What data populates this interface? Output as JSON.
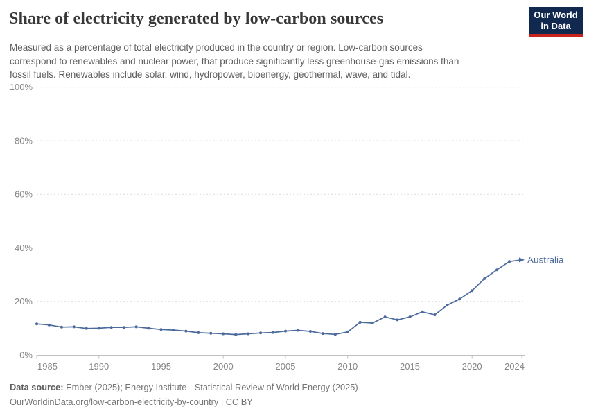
{
  "header": {
    "title": "Share of electricity generated by low-carbon sources",
    "subtitle_lines": [
      "Measured as a percentage of total electricity produced in the country or region. Low-carbon sources",
      "correspond to renewables and nuclear power, that produce significantly less greenhouse-gas emissions than",
      "fossil fuels. Renewables include solar, wind, hydropower, bioenergy, geothermal, wave, and tidal."
    ],
    "logo": {
      "line1": "Our World",
      "line2": "in Data",
      "bg_color": "#12294f",
      "bar_color": "#c7241d"
    }
  },
  "chart_data": {
    "type": "line",
    "title": "Share of electricity generated by low-carbon sources",
    "x": [
      1985,
      1986,
      1987,
      1988,
      1989,
      1990,
      1991,
      1992,
      1993,
      1994,
      1995,
      1996,
      1997,
      1998,
      1999,
      2000,
      2001,
      2002,
      2003,
      2004,
      2005,
      2006,
      2007,
      2008,
      2009,
      2010,
      2011,
      2012,
      2013,
      2014,
      2015,
      2016,
      2017,
      2018,
      2019,
      2020,
      2021,
      2022,
      2023,
      2024
    ],
    "series": [
      {
        "name": "Australia",
        "color": "#4c6a9c",
        "values": [
          11.6,
          11.2,
          10.4,
          10.5,
          9.9,
          10.0,
          10.3,
          10.3,
          10.5,
          10.0,
          9.5,
          9.3,
          8.9,
          8.3,
          8.1,
          7.9,
          7.6,
          7.9,
          8.2,
          8.4,
          8.9,
          9.2,
          8.8,
          8.0,
          7.7,
          8.6,
          12.2,
          11.9,
          14.2,
          13.1,
          14.2,
          16.1,
          15.0,
          18.6,
          20.9,
          24.0,
          28.5,
          31.8,
          34.9,
          35.5
        ]
      }
    ],
    "xlabel": "",
    "ylabel": "",
    "xlim": [
      1985,
      2024
    ],
    "ylim": [
      0,
      100
    ],
    "x_ticks": [
      1985,
      1990,
      1995,
      2000,
      2005,
      2010,
      2015,
      2020,
      2024
    ],
    "y_ticks": [
      0,
      20,
      40,
      60,
      80,
      100
    ],
    "y_tick_suffix": "%",
    "grid": "horizontal-dashed",
    "legend_position": "end-of-line-label",
    "end_label": "Australia"
  },
  "footer": {
    "source_label": "Data source:",
    "source_text": " Ember (2025); Energy Institute - Statistical Review of World Energy (2025)",
    "license_line": "OurWorldinData.org/low-carbon-electricity-by-country | CC BY"
  },
  "colors": {
    "line": "#4c6a9c",
    "axis_label": "#868686",
    "gridline": "#dcdcdc",
    "axis_line": "#c0c0c0",
    "title_text": "#383838",
    "subtitle_text": "#5e5e5e",
    "footer_text": "#757575"
  }
}
